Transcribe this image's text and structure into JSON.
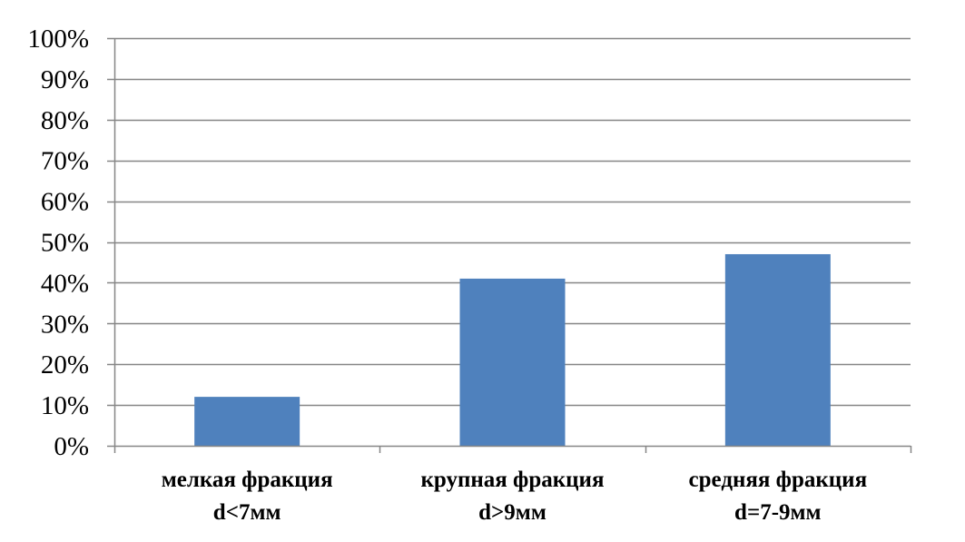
{
  "chart_data": {
    "type": "bar",
    "categories": [
      [
        "мелкая фракция",
        "d<7мм"
      ],
      [
        "крупная фракция",
        "d>9мм"
      ],
      [
        "средняя фракция",
        "d=7-9мм"
      ]
    ],
    "values": [
      12,
      41,
      47
    ],
    "ylim": [
      0,
      100
    ],
    "ytick_step": 10,
    "y_tick_labels": [
      "0%",
      "10%",
      "20%",
      "30%",
      "40%",
      "50%",
      "60%",
      "70%",
      "80%",
      "90%",
      "100%"
    ],
    "grid": true,
    "legend": "none",
    "bar_color": "#4F81BD",
    "grid_color": "#868686",
    "axis_color": "#868686"
  }
}
